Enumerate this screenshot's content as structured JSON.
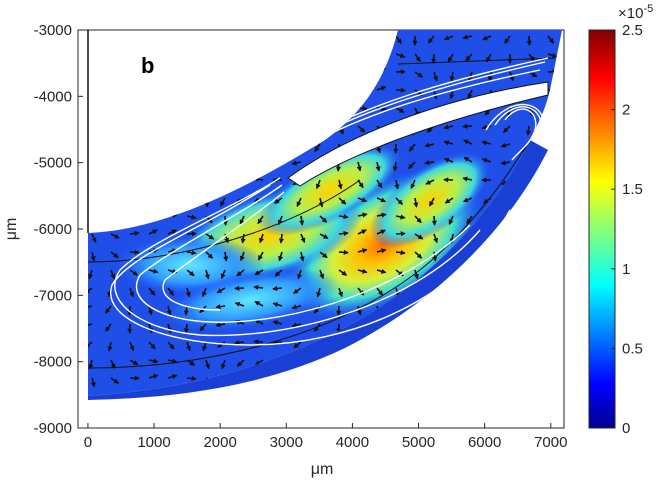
{
  "chart_data": {
    "type": "heatmap",
    "panel_label": "b",
    "xlabel": "μm",
    "ylabel": "μm",
    "xlim": [
      -150,
      7200
    ],
    "ylim": [
      -9000,
      -3000
    ],
    "x_ticks": [
      0,
      1000,
      2000,
      3000,
      4000,
      5000,
      6000,
      7000
    ],
    "x_tick_labels": [
      "0",
      "1000",
      "2000",
      "3000",
      "4000",
      "5000",
      "6000",
      "7000"
    ],
    "y_ticks": [
      -3000,
      -4000,
      -5000,
      -6000,
      -7000,
      -8000,
      -9000
    ],
    "y_tick_labels": [
      "-3000",
      "-4000",
      "-5000",
      "-6000",
      "-7000",
      "-8000",
      "-9000"
    ],
    "colorbar": {
      "colormap": "jet",
      "range": [
        0,
        2.5
      ],
      "ticks": [
        0,
        0.5,
        1,
        1.5,
        2,
        2.5
      ],
      "tick_labels": [
        "0",
        "0.5",
        "1",
        "1.5",
        "2",
        "2.5"
      ],
      "multiplier_base": "×10",
      "multiplier_exp": "-5"
    },
    "hotspot": {
      "x": 4600,
      "y": -6250,
      "peak": 2.2
    },
    "annotation": "arrow field with white streamlines"
  }
}
